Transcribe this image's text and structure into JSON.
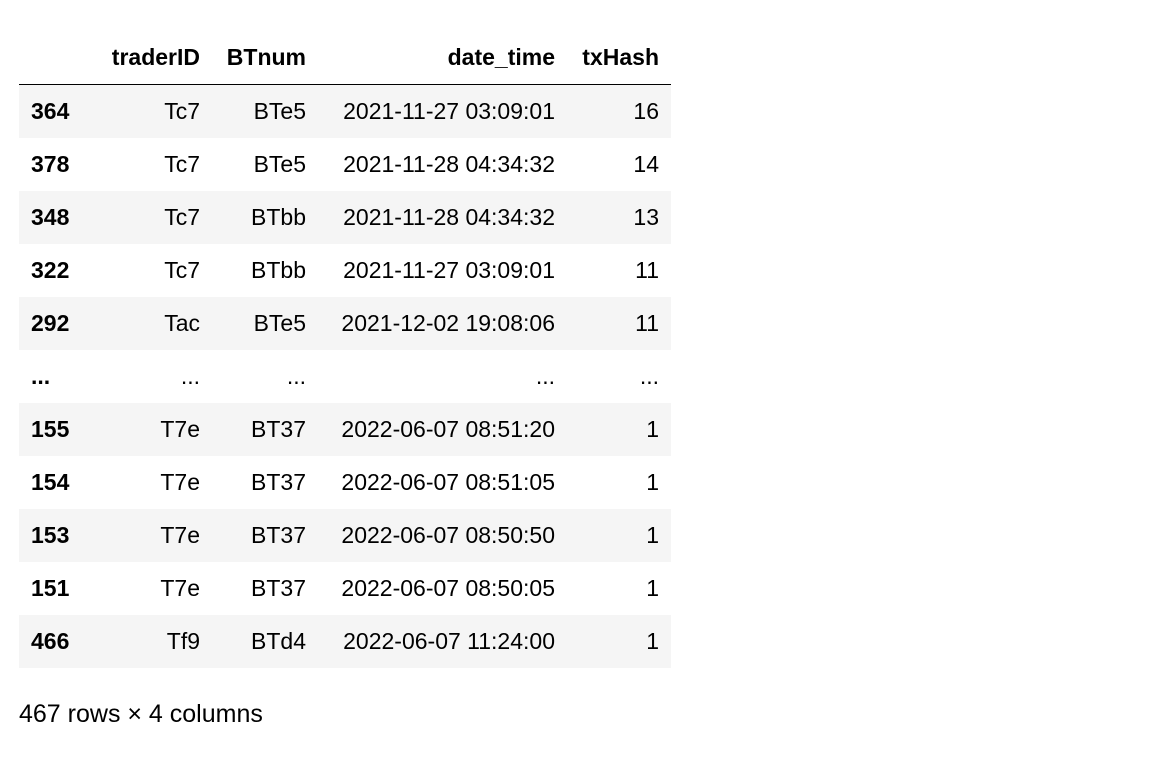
{
  "table": {
    "columns": {
      "index": "",
      "traderID": "traderID",
      "BTnum": "BTnum",
      "date_time": "date_time",
      "txHash": "txHash"
    },
    "rows": [
      {
        "index": "364",
        "traderID": "Tc7",
        "BTnum": "BTe5",
        "date_time": "2021-11-27 03:09:01",
        "txHash": "16"
      },
      {
        "index": "378",
        "traderID": "Tc7",
        "BTnum": "BTe5",
        "date_time": "2021-11-28 04:34:32",
        "txHash": "14"
      },
      {
        "index": "348",
        "traderID": "Tc7",
        "BTnum": "BTbb",
        "date_time": "2021-11-28 04:34:32",
        "txHash": "13"
      },
      {
        "index": "322",
        "traderID": "Tc7",
        "BTnum": "BTbb",
        "date_time": "2021-11-27 03:09:01",
        "txHash": "11"
      },
      {
        "index": "292",
        "traderID": "Tac",
        "BTnum": "BTe5",
        "date_time": "2021-12-02 19:08:06",
        "txHash": "11"
      },
      {
        "index": "...",
        "traderID": "...",
        "BTnum": "...",
        "date_time": "...",
        "txHash": "..."
      },
      {
        "index": "155",
        "traderID": "T7e",
        "BTnum": "BT37",
        "date_time": "2022-06-07 08:51:20",
        "txHash": "1"
      },
      {
        "index": "154",
        "traderID": "T7e",
        "BTnum": "BT37",
        "date_time": "2022-06-07 08:51:05",
        "txHash": "1"
      },
      {
        "index": "153",
        "traderID": "T7e",
        "BTnum": "BT37",
        "date_time": "2022-06-07 08:50:50",
        "txHash": "1"
      },
      {
        "index": "151",
        "traderID": "T7e",
        "BTnum": "BT37",
        "date_time": "2022-06-07 08:50:05",
        "txHash": "1"
      },
      {
        "index": "466",
        "traderID": "Tf9",
        "BTnum": "BTd4",
        "date_time": "2022-06-07 11:24:00",
        "txHash": "1"
      }
    ]
  },
  "footer": {
    "shape_text": "467 rows × 4 columns"
  },
  "colors": {
    "stripe_row": "#f5f5f5",
    "header_rule": "#000000",
    "text": "#000000"
  }
}
